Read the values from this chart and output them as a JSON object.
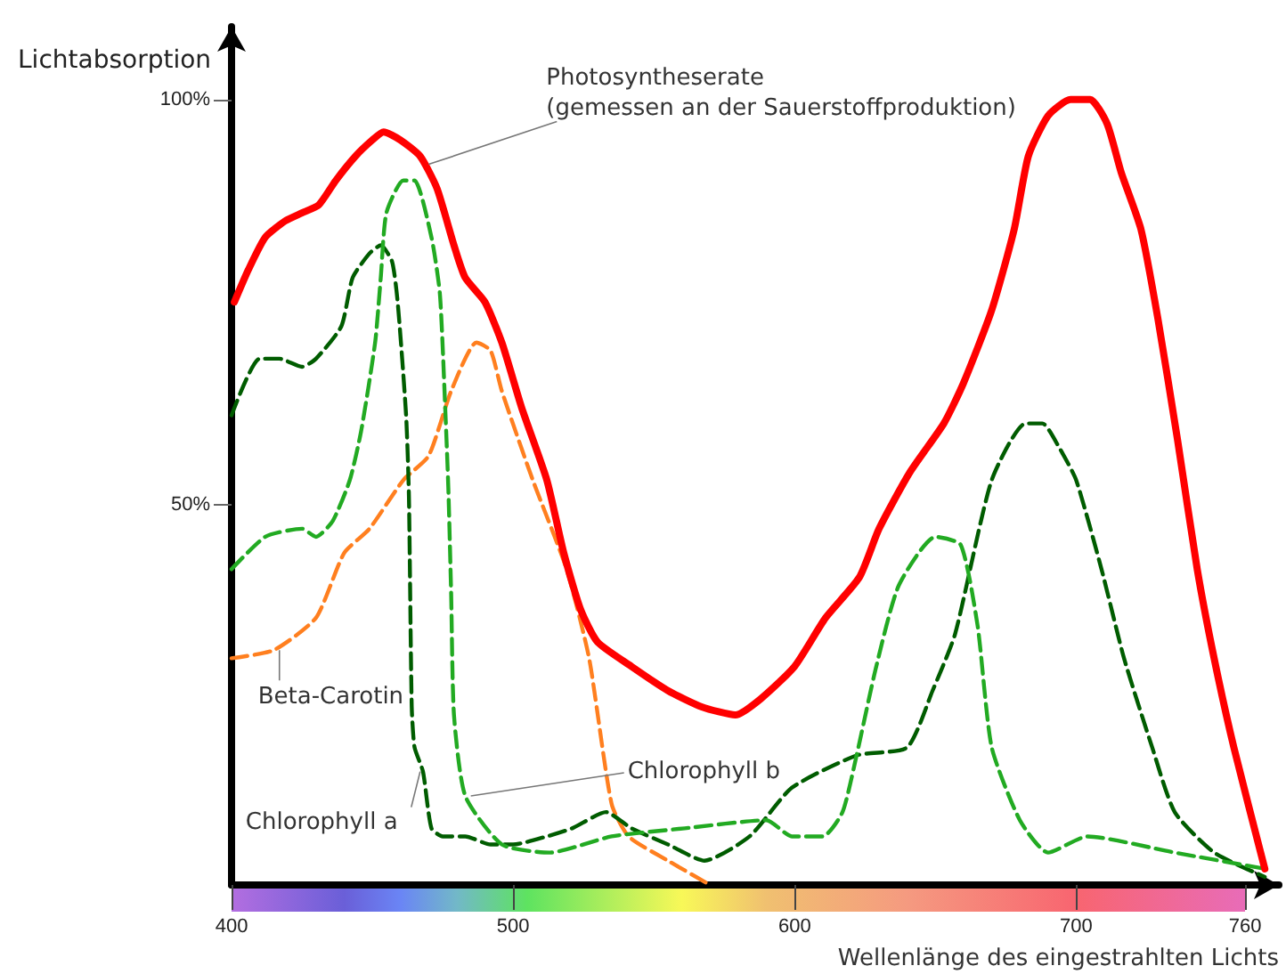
{
  "chart_data": {
    "type": "line",
    "xlabel": "Wellenlänge des eingestrahlten Lichts",
    "ylabel": "Lichtabsorption",
    "xlim": [
      400,
      772
    ],
    "xticks": [
      400,
      500,
      600,
      700,
      760
    ],
    "ylim": [
      3,
      109
    ],
    "yticks": [
      {
        "value": 100,
        "label": "100%"
      },
      {
        "value": 50,
        "label": "50%"
      }
    ],
    "series": [
      {
        "color": "#ff0000",
        "line_style": "solid",
        "x": [
          401,
          406,
          412,
          419,
          425,
          431,
          437,
          444,
          450,
          454,
          460,
          467,
          473,
          479,
          483,
          490,
          496,
          503,
          512,
          518,
          524,
          530,
          542,
          555,
          567,
          579,
          588,
          600,
          611,
          623,
          630,
          641,
          653,
          660,
          670,
          678,
          683,
          690,
          698,
          705,
          711,
          716,
          723,
          729,
          736,
          743,
          749,
          756,
          767
        ],
        "values": [
          75,
          79,
          83,
          85,
          86,
          87,
          90,
          93,
          95,
          96,
          95,
          93,
          89,
          82,
          78,
          75,
          70,
          62,
          53,
          44,
          37,
          33,
          30,
          27,
          25,
          24,
          26,
          30,
          36,
          41,
          47,
          54,
          60,
          65,
          74,
          84,
          93,
          98,
          100,
          100,
          97,
          91,
          84,
          73,
          58,
          42,
          31,
          20,
          5
        ]
      },
      {
        "color": "#ff7f1f",
        "line_style": "dashed",
        "x": [
          400,
          415,
          430,
          440,
          449,
          461,
          470,
          478,
          487,
          492,
          496,
          507,
          519,
          527,
          535,
          541,
          555,
          570
        ],
        "values": [
          31,
          32,
          36,
          44,
          47,
          53,
          56,
          64,
          70,
          69,
          64,
          53,
          42,
          31,
          13,
          9,
          6,
          3
        ]
      },
      {
        "color": "#005c00",
        "line_style": "dashed",
        "x": [
          400,
          410,
          417,
          425,
          430,
          439,
          443,
          449,
          453,
          457,
          459,
          462,
          463,
          464,
          465,
          468,
          471,
          475,
          483,
          492,
          500,
          512,
          521,
          533,
          542,
          555,
          568,
          584,
          599,
          622,
          640,
          649,
          657,
          670,
          682,
          688,
          694,
          700,
          709,
          717,
          727,
          735,
          749,
          767
        ],
        "values": [
          61,
          68,
          68,
          67,
          68,
          72,
          78,
          81,
          82,
          80,
          75,
          61,
          51,
          25,
          20,
          17,
          10,
          9,
          9,
          8,
          8,
          9,
          10,
          12,
          10,
          8,
          6,
          9,
          15,
          19,
          20,
          27,
          34,
          53,
          60,
          60,
          57,
          53,
          42,
          31,
          20,
          12,
          7,
          4
        ]
      },
      {
        "color": "#22aa22",
        "line_style": "dashed",
        "x": [
          400,
          412,
          425,
          430,
          436,
          442,
          446,
          451,
          453,
          455,
          461,
          465,
          471,
          474,
          476,
          477,
          478,
          479,
          483,
          496,
          513,
          535,
          561,
          590,
          599,
          610,
          617,
          622,
          629,
          637,
          650,
          659,
          665,
          670,
          680,
          690,
          704,
          735,
          767
        ],
        "values": [
          42,
          46,
          47,
          46,
          48,
          53,
          59,
          70,
          78,
          86,
          90,
          90,
          83,
          76,
          61,
          52,
          39,
          24,
          14,
          8,
          7,
          9,
          10,
          11,
          9,
          9,
          12,
          19,
          30,
          40,
          46,
          45,
          35,
          20,
          11,
          7,
          9,
          7,
          5
        ]
      }
    ],
    "annotations": [
      {
        "text": "Photosyntheserate\n(gemessen an der Sauerstoffproduktion)",
        "x": 470,
        "y": 92
      },
      {
        "text": "Beta-Carotin",
        "x": 417,
        "y": 32
      },
      {
        "text": "Chlorophyll a",
        "x": 467,
        "y": 17
      },
      {
        "text": "Chlorophyll b",
        "x": 485,
        "y": 14
      }
    ]
  }
}
